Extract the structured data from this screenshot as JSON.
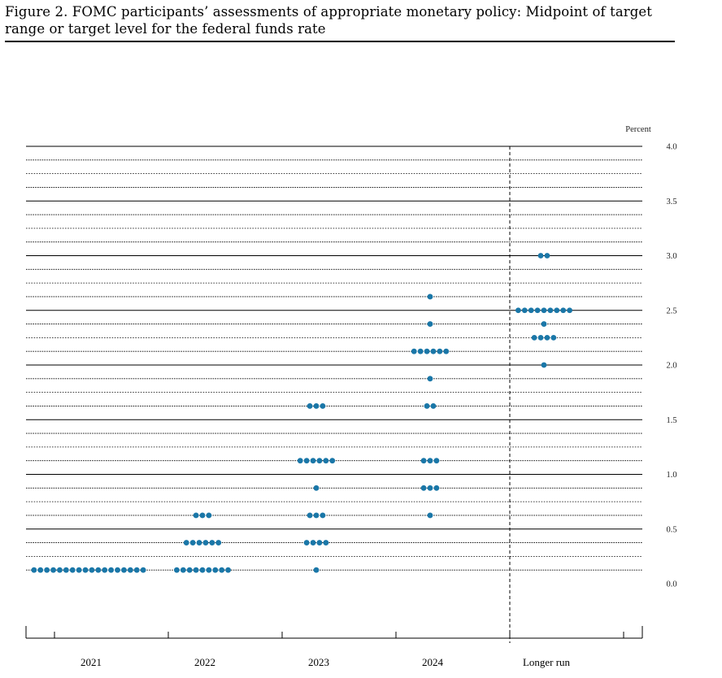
{
  "figure": {
    "title": "Figure 2.  FOMC participants’ assessments of appropriate monetary policy:  Midpoint of target range or target level for the federal funds rate"
  },
  "chart_data": {
    "type": "scatter",
    "subtype": "dot plot",
    "unit_label": "Percent",
    "categories": [
      "2021",
      "2022",
      "2023",
      "2024",
      "Longer run"
    ],
    "ylim": [
      -0.375,
      4.0
    ],
    "y_ticks": [
      0.0,
      0.5,
      1.0,
      1.5,
      2.0,
      2.5,
      3.0,
      3.5,
      4.0
    ],
    "y_tick_labels": [
      "0.0",
      "0.5",
      "1.0",
      "1.5",
      "2.0",
      "2.5",
      "3.0",
      "3.5",
      "4.0"
    ],
    "grid": "solid at whole and half percents, dotted at quarter-point midpoints",
    "separator_before": "Longer run",
    "dot_color": "#1a77a8",
    "points": [
      {
        "category": "2021",
        "rate": 0.125,
        "count": 18
      },
      {
        "category": "2022",
        "rate": 0.125,
        "count": 9
      },
      {
        "category": "2022",
        "rate": 0.375,
        "count": 6
      },
      {
        "category": "2022",
        "rate": 0.625,
        "count": 3
      },
      {
        "category": "2023",
        "rate": 0.125,
        "count": 1
      },
      {
        "category": "2023",
        "rate": 0.375,
        "count": 4
      },
      {
        "category": "2023",
        "rate": 0.625,
        "count": 3
      },
      {
        "category": "2023",
        "rate": 0.875,
        "count": 1
      },
      {
        "category": "2023",
        "rate": 1.125,
        "count": 6
      },
      {
        "category": "2023",
        "rate": 1.625,
        "count": 3
      },
      {
        "category": "2024",
        "rate": 0.625,
        "count": 1
      },
      {
        "category": "2024",
        "rate": 0.875,
        "count": 3
      },
      {
        "category": "2024",
        "rate": 1.125,
        "count": 3
      },
      {
        "category": "2024",
        "rate": 1.625,
        "count": 2
      },
      {
        "category": "2024",
        "rate": 1.875,
        "count": 1
      },
      {
        "category": "2024",
        "rate": 2.125,
        "count": 6
      },
      {
        "category": "2024",
        "rate": 2.375,
        "count": 1
      },
      {
        "category": "2024",
        "rate": 2.625,
        "count": 1
      },
      {
        "category": "Longer run",
        "rate": 2.0,
        "count": 1
      },
      {
        "category": "Longer run",
        "rate": 2.25,
        "count": 4
      },
      {
        "category": "Longer run",
        "rate": 2.375,
        "count": 1
      },
      {
        "category": "Longer run",
        "rate": 2.5,
        "count": 9
      },
      {
        "category": "Longer run",
        "rate": 3.0,
        "count": 2
      }
    ]
  }
}
